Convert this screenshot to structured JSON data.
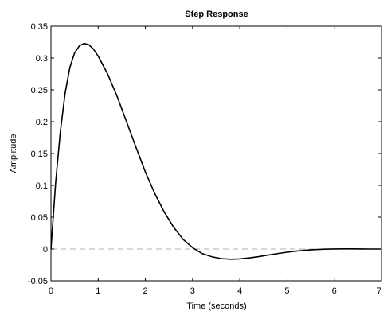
{
  "chart_data": {
    "type": "line",
    "title": "Step Response",
    "xlabel": "Time (seconds)",
    "ylabel": "Amplitude",
    "xlim": [
      0,
      7
    ],
    "ylim": [
      -0.05,
      0.35
    ],
    "x_ticks": [
      "0",
      "1",
      "2",
      "3",
      "4",
      "5",
      "6",
      "7"
    ],
    "y_ticks": [
      "-0.05",
      "0",
      "0.05",
      "0.1",
      "0.15",
      "0.2",
      "0.25",
      "0.3",
      "0.35"
    ],
    "grid": false,
    "series": [
      {
        "x": [
          0,
          0.1,
          0.2,
          0.3,
          0.4,
          0.5,
          0.6,
          0.7,
          0.8,
          0.9,
          1.0,
          1.2,
          1.4,
          1.6,
          1.8,
          2.0,
          2.2,
          2.4,
          2.6,
          2.8,
          3.0,
          3.2,
          3.4,
          3.6,
          3.8,
          4.0,
          4.2,
          4.4,
          4.6,
          4.8,
          5.0,
          5.2,
          5.4,
          5.6,
          5.8,
          6.0,
          6.2,
          6.4,
          6.6,
          6.8,
          7.0
        ],
        "values": [
          0,
          0.105,
          0.185,
          0.245,
          0.285,
          0.308,
          0.319,
          0.323,
          0.321,
          0.314,
          0.303,
          0.275,
          0.24,
          0.2,
          0.16,
          0.121,
          0.087,
          0.058,
          0.034,
          0.015,
          0.002,
          -0.007,
          -0.012,
          -0.015,
          -0.016,
          -0.0155,
          -0.014,
          -0.012,
          -0.0095,
          -0.0072,
          -0.005,
          -0.0032,
          -0.0018,
          -0.0008,
          -0.0002,
          0.0001,
          0.0002,
          0.0002,
          0.0001,
          0.0,
          0.0
        ],
        "color": "#000000"
      }
    ],
    "reference_line": {
      "y": 0,
      "style": "dashed",
      "color": "#b0b0b0"
    }
  }
}
